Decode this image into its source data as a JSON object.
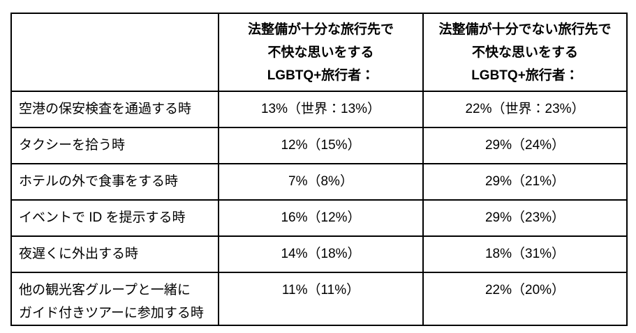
{
  "chart_data": {
    "type": "table",
    "title": "",
    "columns": [
      "",
      "法整備が十分な旅行先で\n不快な思いをする\nLGBTQ+旅行者：",
      "法整備が十分でない旅行先で\n不快な思いをする\nLGBTQ+旅行者："
    ],
    "rows": [
      {
        "label": "空港の保安検査を通過する時",
        "well_legislated": "13%（世界：13%）",
        "poorly_legislated": "22%（世界：23%）"
      },
      {
        "label": "タクシーを拾う時",
        "well_legislated": "12%（15%）",
        "poorly_legislated": "29%（24%）"
      },
      {
        "label": "ホテルの外で食事をする時",
        "well_legislated": "7%（8%）",
        "poorly_legislated": "29%（21%）"
      },
      {
        "label": "イベントで ID を提示する時",
        "well_legislated": "16%（12%）",
        "poorly_legislated": "29%（23%）"
      },
      {
        "label": "夜遅くに外出する時",
        "well_legislated": "14%（18%）",
        "poorly_legislated": "18%（31%）"
      },
      {
        "label": "他の観光客グループと一緒に\nガイド付きツアーに参加する時",
        "well_legislated": "11%（11%）",
        "poorly_legislated": "22%（20%）"
      }
    ],
    "categories": [
      "空港の保安検査を通過する時",
      "タクシーを拾う時",
      "ホテルの外で食事をする時",
      "イベントで ID を提示する時",
      "夜遅くに外出する時",
      "他の観光客グループと一緒にガイド付きツアーに参加する時"
    ],
    "series": [
      {
        "name": "法整備が十分な旅行先で不快な思いをするLGBTQ+旅行者",
        "values_pct": [
          13,
          12,
          7,
          16,
          14,
          11
        ],
        "world_values_pct": [
          13,
          15,
          8,
          12,
          18,
          11
        ]
      },
      {
        "name": "法整備が十分でない旅行先で不快な思いをするLGBTQ+旅行者",
        "values_pct": [
          22,
          29,
          29,
          29,
          18,
          22
        ],
        "world_values_pct": [
          23,
          24,
          21,
          23,
          31,
          20
        ]
      }
    ],
    "layout": {
      "grid": "all-borders",
      "border_color": "#000000",
      "background_color": "#ffffff",
      "text_color": "#000000"
    }
  }
}
